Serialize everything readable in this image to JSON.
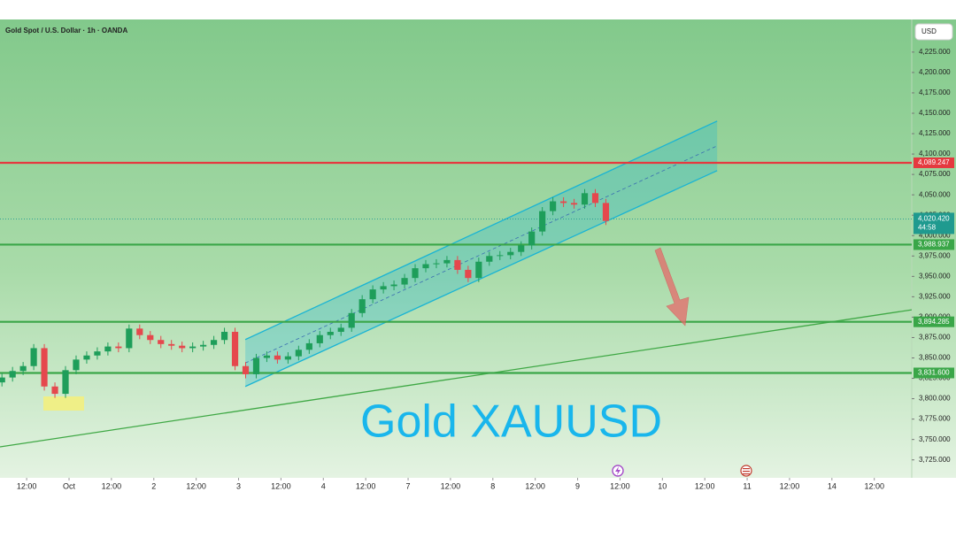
{
  "chart_data": {
    "type": "candlestick",
    "title": "Gold Spot / U.S. Dollar · 1h · OANDA",
    "currency": "USD",
    "annotation": "Gold XAUUSD",
    "up_color": "#1e9e5a",
    "down_color": "#e5484d",
    "x": [
      5,
      8,
      11,
      14,
      17,
      20,
      23,
      26,
      29,
      32,
      35,
      38,
      41,
      44,
      47,
      50,
      53,
      56,
      59,
      62,
      65,
      68,
      71,
      74,
      77,
      80,
      83,
      86,
      89,
      92,
      95,
      98,
      101,
      104,
      107,
      110,
      113,
      116,
      119,
      122,
      125,
      128,
      131,
      134,
      137,
      140,
      143,
      146,
      149,
      152,
      155,
      158,
      161,
      164,
      167,
      170,
      173,
      176
    ],
    "open": [
      3820,
      3826,
      3834,
      3840,
      3862,
      3815,
      3806,
      3835,
      3848,
      3853,
      3858,
      3864,
      3862,
      3886,
      3878,
      3872,
      3867,
      3865,
      3862,
      3864,
      3866,
      3872,
      3882,
      3840,
      3830,
      3850,
      3853,
      3848,
      3852,
      3860,
      3868,
      3878,
      3882,
      3887,
      3905,
      3922,
      3934,
      3938,
      3940,
      3948,
      3960,
      3965,
      3966,
      3970,
      3958,
      3948,
      3968,
      3975,
      3976,
      3980,
      3988,
      4005,
      4030,
      4042,
      4040,
      4038,
      4052,
      4040
    ],
    "high": [
      3831,
      3839,
      3845,
      3867,
      3867,
      3820,
      3840,
      3853,
      3858,
      3863,
      3869,
      3869,
      3891,
      3891,
      3883,
      3877,
      3872,
      3870,
      3869,
      3871,
      3877,
      3887,
      3887,
      3845,
      3855,
      3858,
      3858,
      3857,
      3865,
      3873,
      3883,
      3887,
      3892,
      3910,
      3927,
      3939,
      3943,
      3945,
      3953,
      3965,
      3970,
      3971,
      3975,
      3975,
      3963,
      3973,
      3980,
      3981,
      3985,
      3993,
      4010,
      4035,
      4047,
      4047,
      4045,
      4057,
      4057,
      4045
    ],
    "low": [
      3815,
      3821,
      3829,
      3835,
      3810,
      3801,
      3801,
      3830,
      3843,
      3848,
      3853,
      3857,
      3857,
      3873,
      3867,
      3862,
      3860,
      3857,
      3857,
      3859,
      3861,
      3867,
      3835,
      3825,
      3825,
      3845,
      3843,
      3843,
      3847,
      3855,
      3863,
      3873,
      3877,
      3882,
      3900,
      3917,
      3929,
      3933,
      3935,
      3943,
      3955,
      3960,
      3961,
      3953,
      3943,
      3943,
      3963,
      3970,
      3971,
      3975,
      3983,
      4000,
      4025,
      4035,
      4033,
      4033,
      4035,
      4013
    ],
    "close": [
      3826,
      3834,
      3840,
      3862,
      3815,
      3806,
      3835,
      3848,
      3853,
      3858,
      3864,
      3862,
      3886,
      3878,
      3872,
      3867,
      3865,
      3862,
      3864,
      3866,
      3872,
      3882,
      3840,
      3830,
      3850,
      3853,
      3848,
      3852,
      3860,
      3868,
      3878,
      3882,
      3887,
      3905,
      3922,
      3934,
      3938,
      3940,
      3948,
      3960,
      3965,
      3966,
      3970,
      3958,
      3948,
      3968,
      3975,
      3976,
      3980,
      3988,
      4005,
      4030,
      4042,
      4040,
      4038,
      4052,
      4040,
      4018
    ],
    "xlim": [
      4.45,
      262.6
    ],
    "xticks": [
      {
        "value": 12,
        "label": "12:00"
      },
      {
        "value": 24,
        "label": "Oct"
      },
      {
        "value": 36,
        "label": "12:00"
      },
      {
        "value": 48,
        "label": "2"
      },
      {
        "value": 60,
        "label": "12:00"
      },
      {
        "value": 72,
        "label": "3"
      },
      {
        "value": 84,
        "label": "12:00"
      },
      {
        "value": 96,
        "label": "4"
      },
      {
        "value": 108,
        "label": "12:00"
      },
      {
        "value": 120,
        "label": "7"
      },
      {
        "value": 132,
        "label": "12:00"
      },
      {
        "value": 144,
        "label": "8"
      },
      {
        "value": 156,
        "label": "12:00"
      },
      {
        "value": 168,
        "label": "9"
      },
      {
        "value": 180,
        "label": "12:00"
      },
      {
        "value": 192,
        "label": "10"
      },
      {
        "value": 204,
        "label": "12:00"
      },
      {
        "value": 216,
        "label": "11"
      },
      {
        "value": 228,
        "label": "12:00"
      },
      {
        "value": 240,
        "label": "14"
      },
      {
        "value": 252,
        "label": "12:00"
      }
    ],
    "ylim": [
      3703,
      4265
    ],
    "yticks": [
      {
        "value": 3725,
        "label": "3,725.000"
      },
      {
        "value": 3750,
        "label": "3,750.000"
      },
      {
        "value": 3775,
        "label": "3,775.000"
      },
      {
        "value": 3800,
        "label": "3,800.000"
      },
      {
        "value": 3825,
        "label": "3,825.000"
      },
      {
        "value": 3850,
        "label": "3,850.000"
      },
      {
        "value": 3875,
        "label": "3,875.000"
      },
      {
        "value": 3900,
        "label": "3,900.000"
      },
      {
        "value": 3925,
        "label": "3,925.000"
      },
      {
        "value": 3950,
        "label": "3,950.000"
      },
      {
        "value": 3975,
        "label": "3,975.000"
      },
      {
        "value": 4000,
        "label": "4,000.000"
      },
      {
        "value": 4025,
        "label": "4,025.000"
      },
      {
        "value": 4050,
        "label": "4,050.000"
      },
      {
        "value": 4075,
        "label": "4,075.000"
      },
      {
        "value": 4100,
        "label": "4,100.000"
      },
      {
        "value": 4125,
        "label": "4,125.000"
      },
      {
        "value": 4150,
        "label": "4,150.000"
      },
      {
        "value": 4175,
        "label": "4,175.000"
      },
      {
        "value": 4200,
        "label": "4,200.000"
      },
      {
        "value": 4225,
        "label": "4,225.000"
      }
    ],
    "levels": [
      {
        "value": 4089.247,
        "label": "4,089.247",
        "color": "#e5393f"
      },
      {
        "value": 3988.937,
        "label": "3,988.937",
        "color": "#3aa648"
      },
      {
        "value": 3894.285,
        "label": "3,894.285",
        "color": "#3aa648"
      },
      {
        "value": 3831.6,
        "label": "3,831.600",
        "color": "#3aa648"
      }
    ],
    "last_price": {
      "value": 4020.42,
      "label": "4,020.420",
      "countdown": "44:58",
      "color": "#1f9a8f"
    },
    "channel": {
      "color": "#19b4d4",
      "upper": {
        "x": [
          73.9,
          207.5
        ],
        "y": [
          3872.5,
          4140.4
        ]
      },
      "lower": {
        "x": [
          73.9,
          207.5
        ],
        "y": [
          3815,
          4079.7
        ]
      }
    },
    "trendline": {
      "color": "#3fa845",
      "x": [
        4.45,
        262.6
      ],
      "y": [
        3741,
        3909
      ]
    }
  }
}
